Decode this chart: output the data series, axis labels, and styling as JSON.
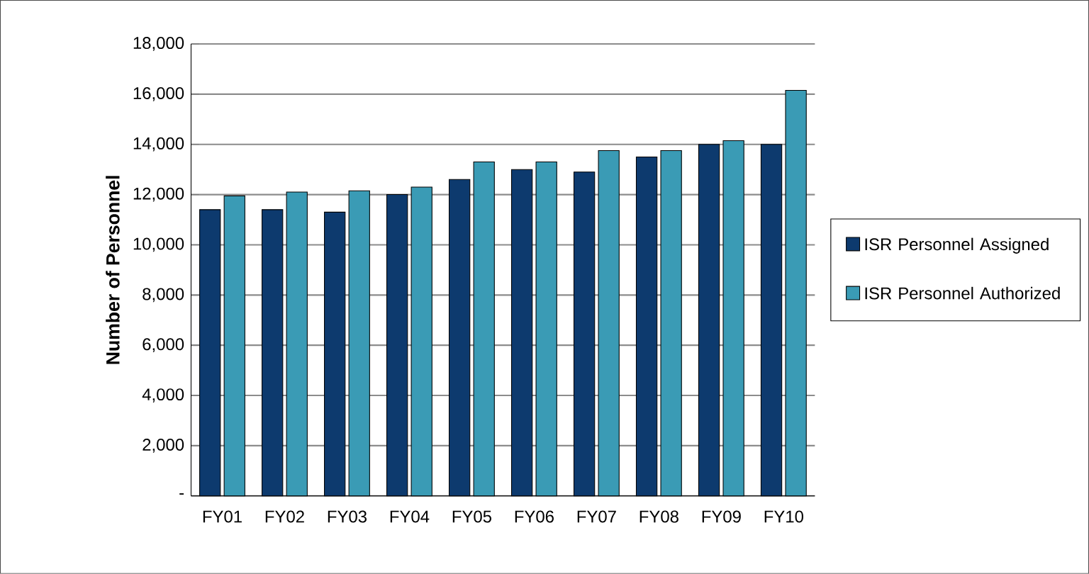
{
  "chart_data": {
    "type": "bar",
    "ylabel": "Number of Personnel",
    "categories": [
      "FY01",
      "FY02",
      "FY03",
      "FY04",
      "FY05",
      "FY06",
      "FY07",
      "FY08",
      "FY09",
      "FY10"
    ],
    "series": [
      {
        "name": "ISR Personnel Assigned",
        "color": "#0d3a6e",
        "values": [
          11400,
          11400,
          11300,
          12000,
          12600,
          13000,
          12900,
          13500,
          14000,
          14000
        ]
      },
      {
        "name": "ISR Personnel Authorized",
        "color": "#3a9bb5",
        "values": [
          11950,
          12100,
          12150,
          12300,
          13300,
          13300,
          13750,
          13750,
          14150,
          16150
        ]
      }
    ],
    "ylim": [
      0,
      18000
    ],
    "yticks": [
      {
        "value": 0,
        "label": "-"
      },
      {
        "value": 2000,
        "label": "2,000"
      },
      {
        "value": 4000,
        "label": "4,000"
      },
      {
        "value": 6000,
        "label": "6,000"
      },
      {
        "value": 8000,
        "label": "8,000"
      },
      {
        "value": 10000,
        "label": "10,000"
      },
      {
        "value": 12000,
        "label": "12,000"
      },
      {
        "value": 14000,
        "label": "14,000"
      },
      {
        "value": 16000,
        "label": "16,000"
      },
      {
        "value": 18000,
        "label": "18,000"
      }
    ],
    "grid": "y",
    "legend": "right"
  }
}
